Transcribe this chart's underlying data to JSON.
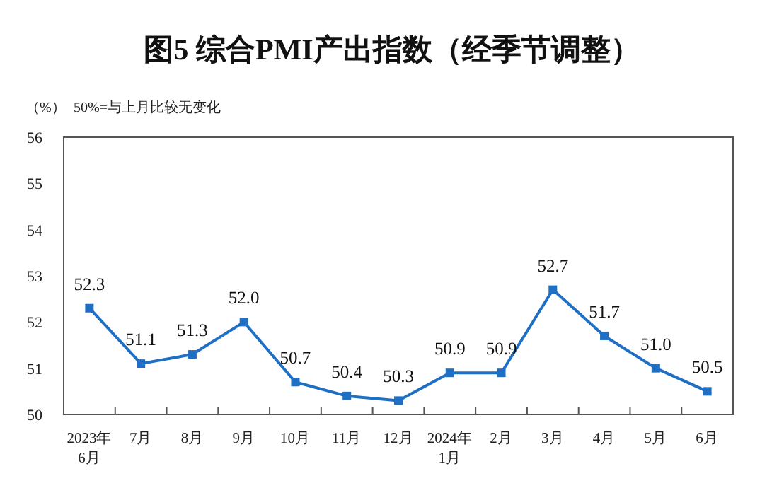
{
  "chart_data": {
    "type": "line",
    "title": "图5  综合PMI产出指数（经季节调整）",
    "ylabel": "（%）",
    "subtitle": "50%=与上月比较无变化",
    "categories": [
      "2023年\n6月",
      "7月",
      "8月",
      "9月",
      "10月",
      "11月",
      "12月",
      "2024年\n1月",
      "2月",
      "3月",
      "4月",
      "5月",
      "6月"
    ],
    "series": [
      {
        "color": "#1f6fc5",
        "values": [
          52.3,
          51.1,
          51.3,
          52.0,
          50.7,
          50.4,
          50.3,
          50.9,
          50.9,
          52.7,
          51.7,
          51.0,
          50.5
        ],
        "value_labels": [
          "52.3",
          "51.1",
          "51.3",
          "52.0",
          "50.7",
          "50.4",
          "50.3",
          "50.9",
          "50.9",
          "52.7",
          "51.7",
          "51.0",
          "50.5"
        ]
      }
    ],
    "ylim": [
      50,
      56
    ],
    "yticks": [
      50,
      51,
      52,
      53,
      54,
      55,
      56
    ],
    "marker": "square",
    "line_style": "solid",
    "grid": false
  }
}
